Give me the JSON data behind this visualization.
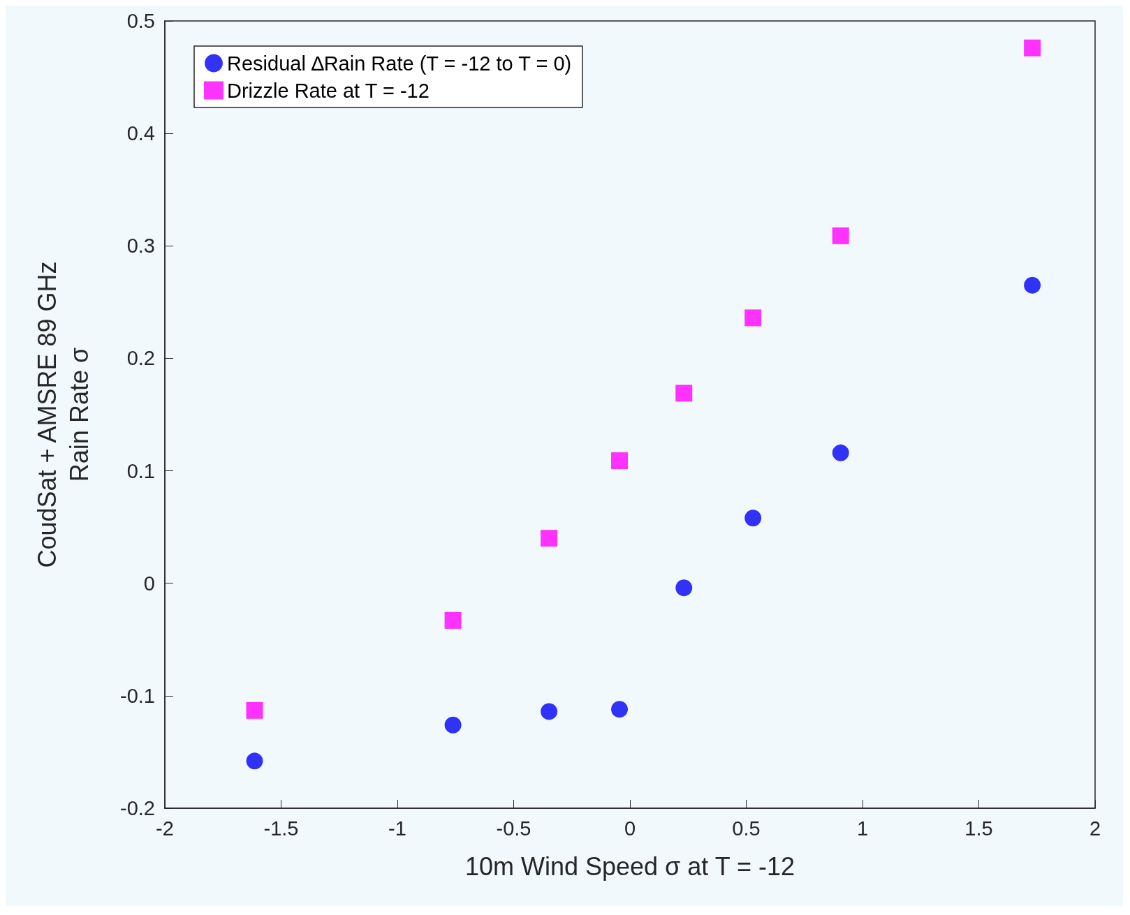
{
  "chart_data": {
    "type": "scatter",
    "xlabel": "10m Wind Speed σ at T = -12",
    "ylabel": "CoudSat + AMSRE 89 GHz\nRain Rate σ",
    "xlim": [
      -2,
      2
    ],
    "xticks": [
      -2,
      -1.5,
      -1,
      -0.5,
      0,
      0.5,
      1,
      1.5,
      2
    ],
    "ylim": [
      -0.2,
      0.5
    ],
    "yticks": [
      -0.2,
      -0.1,
      0,
      0.1,
      0.2,
      0.3,
      0.4,
      0.5
    ],
    "grid": false,
    "legend": "top left",
    "series": [
      {
        "name": "Residual ∆Rain Rate (T = -12 to T = 0)",
        "color": "#0000f5",
        "marker": "circle",
        "x": [
          -1.614,
          -0.761,
          -0.348,
          -0.045,
          0.232,
          0.529,
          0.906,
          1.73
        ],
        "values": [
          -0.158,
          -0.126,
          -0.114,
          -0.112,
          -0.004,
          0.058,
          0.116,
          0.265
        ]
      },
      {
        "name": "Drizzle Rate at T = -12",
        "color": "#ff00ff",
        "marker": "square",
        "x": [
          -1.614,
          -0.761,
          -0.348,
          -0.045,
          0.232,
          0.529,
          0.906,
          1.73
        ],
        "values": [
          -0.113,
          -0.033,
          0.04,
          0.109,
          0.169,
          0.236,
          0.309,
          0.476
        ]
      }
    ]
  }
}
